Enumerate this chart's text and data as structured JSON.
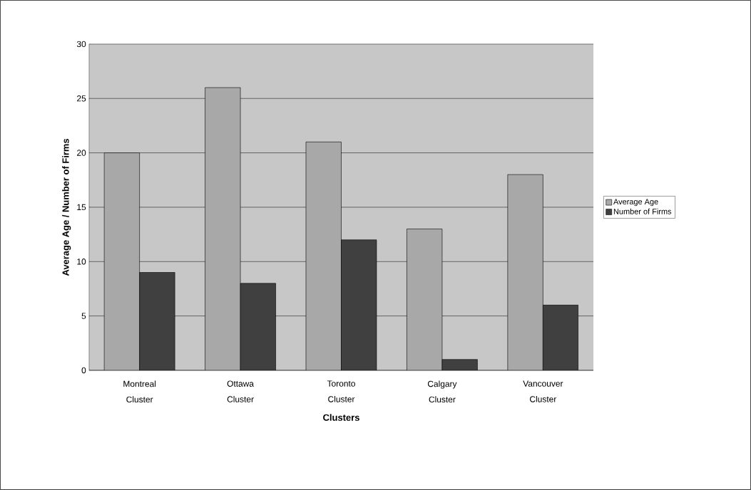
{
  "chart_data": {
    "type": "bar",
    "xlabel": "Clusters",
    "ylabel": "Average Age / Number of Firms",
    "categories": [
      "Montreal Cluster",
      "Ottawa Cluster",
      "Toronto Cluster",
      "Calgary Cluster",
      "Vancouver Cluster"
    ],
    "series": [
      {
        "name": "Average Age",
        "color": "#a8a8a8",
        "values": [
          20,
          26,
          21,
          13,
          18
        ]
      },
      {
        "name": "Number of Firms",
        "color": "#404040",
        "values": [
          9,
          8,
          12,
          1,
          6
        ]
      }
    ],
    "ylim": [
      0,
      30
    ],
    "yticks": [
      0,
      5,
      10,
      15,
      20,
      25,
      30
    ],
    "grid": "y",
    "legend": "right"
  }
}
